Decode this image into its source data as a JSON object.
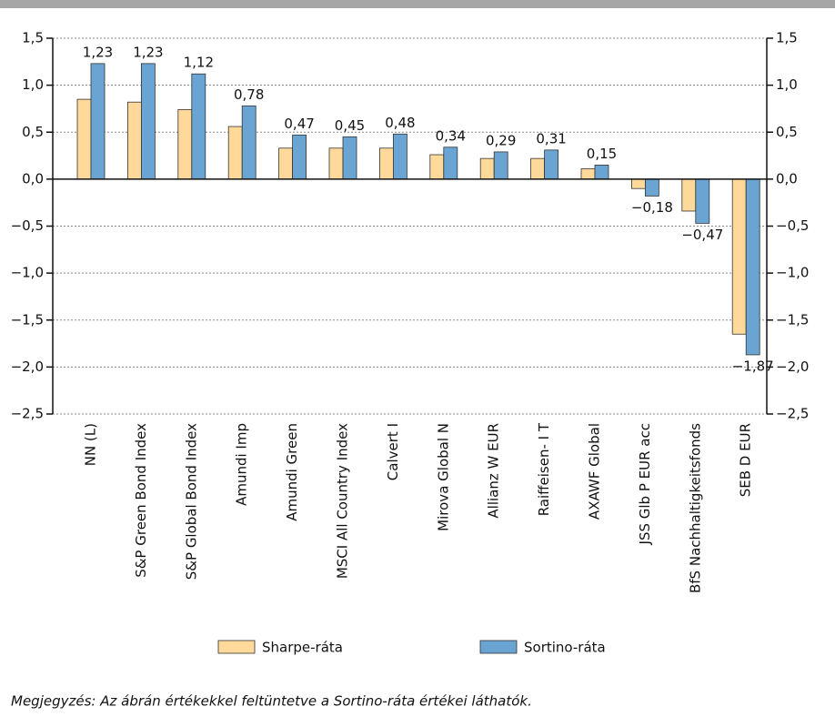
{
  "chart_data": {
    "type": "bar",
    "categories": [
      "NN (L)",
      "S&P Green Bond Index",
      "S&P Global Bond Index",
      "Amundi Imp",
      "Amundi Green",
      "MSCI All Country Index",
      "Calvert I",
      "Mirova Global N",
      "Allianz W EUR",
      "Raiffeisen- I T",
      "AXAWF Global",
      "JSS Glb P EUR acc",
      "BfS Nachhaltigkeitsfonds",
      "SEB D EUR"
    ],
    "series": [
      {
        "name": "Sharpe-ráta",
        "color": "#ffd99a",
        "values": [
          0.85,
          0.82,
          0.74,
          0.56,
          0.33,
          0.33,
          0.33,
          0.26,
          0.22,
          0.22,
          0.11,
          -0.1,
          -0.34,
          -1.65
        ]
      },
      {
        "name": "Sortino-ráta",
        "color": "#6aa4d2",
        "values": [
          1.23,
          1.23,
          1.12,
          0.78,
          0.47,
          0.45,
          0.48,
          0.34,
          0.29,
          0.31,
          0.15,
          -0.18,
          -0.47,
          -1.87
        ],
        "value_labels": [
          "1,23",
          "1,23",
          "1,12",
          "0,78",
          "0,47",
          "0,45",
          "0,48",
          "0,34",
          "0,29",
          "0,31",
          "0,15",
          "−0,18",
          "−0,47",
          "−1,87"
        ]
      }
    ],
    "ylim": [
      -2.5,
      1.5
    ],
    "yticks": [
      {
        "value": 1.5,
        "label": "1,5"
      },
      {
        "value": 1.0,
        "label": "1,0"
      },
      {
        "value": 0.5,
        "label": "0,5"
      },
      {
        "value": 0,
        "label": "0,0"
      },
      {
        "value": -0.5,
        "label": "−0,5"
      },
      {
        "value": -1.0,
        "label": "−1,0"
      },
      {
        "value": -1.5,
        "label": "−1,5"
      },
      {
        "value": -2.0,
        "label": "−2,0"
      },
      {
        "value": -2.5,
        "label": "−2,5"
      }
    ],
    "y2lim": [
      -2.5,
      1.5
    ],
    "y2ticks": [
      {
        "value": 1.5,
        "label": "1,5"
      },
      {
        "value": 1.0,
        "label": "1,0"
      },
      {
        "value": 0.5,
        "label": "0,5"
      },
      {
        "value": 0,
        "label": "0,0"
      },
      {
        "value": -0.5,
        "label": "−0,5"
      },
      {
        "value": -1.0,
        "label": "−1,0"
      },
      {
        "value": -1.5,
        "label": "−1,5"
      },
      {
        "value": -2.0,
        "label": "−2,0"
      },
      {
        "value": -2.5,
        "label": "−2,5"
      }
    ],
    "grid": true,
    "legend": "bottom",
    "note": "Megjegyzés: Az ábrán értékekkel feltüntetve a Sortino-ráta értékei láthatók."
  }
}
